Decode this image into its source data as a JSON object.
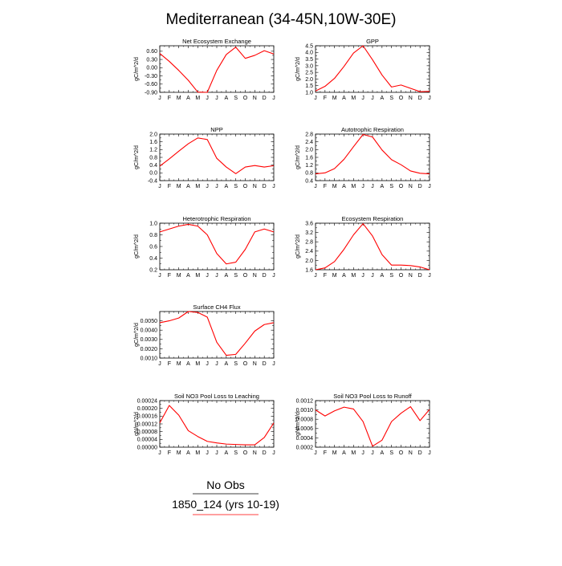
{
  "page_title": "Mediterranean (34-45N,10W-30E)",
  "legend": {
    "obs_label": "No Obs",
    "obs_color": "#000000",
    "case_label": "1850_124 (yrs 10-19)",
    "case_color": "#ff0000"
  },
  "line_color": "#ff0000",
  "months": [
    "J",
    "F",
    "M",
    "A",
    "M",
    "J",
    "J",
    "A",
    "S",
    "O",
    "N",
    "D",
    "J"
  ],
  "chart_data": [
    {
      "type": "line",
      "title": "Net Ecosystem Exchange",
      "ylabel": "gC/m^2/d",
      "ylim": [
        -0.9,
        0.8
      ],
      "yticks": [
        -0.9,
        -0.6,
        -0.3,
        0.0,
        0.3,
        0.6
      ],
      "ytick_labels": [
        "-0.90",
        "-0.60",
        "-0.30",
        "0.00",
        "0.30",
        "0.60"
      ],
      "values": [
        0.52,
        0.23,
        -0.1,
        -0.46,
        -0.89,
        -0.9,
        -0.1,
        0.48,
        0.75,
        0.34,
        0.45,
        0.62,
        0.5
      ]
    },
    {
      "type": "line",
      "title": "GPP",
      "ylabel": "gC/m^2/d",
      "ylim": [
        1.0,
        4.5
      ],
      "yticks": [
        1.0,
        1.5,
        2.0,
        2.5,
        3.0,
        3.5,
        4.0,
        4.5
      ],
      "ytick_labels": [
        "1.0",
        "1.5",
        "2.0",
        "2.5",
        "3.0",
        "3.5",
        "4.0",
        "4.5"
      ],
      "values": [
        1.1,
        1.45,
        2.05,
        2.95,
        3.95,
        4.5,
        3.45,
        2.3,
        1.4,
        1.55,
        1.3,
        1.05,
        1.07
      ]
    },
    {
      "type": "line",
      "title": "NPP",
      "ylabel": "gC/m^2/d",
      "ylim": [
        -0.4,
        2.0
      ],
      "yticks": [
        -0.4,
        0.0,
        0.4,
        0.8,
        1.2,
        1.6,
        2.0
      ],
      "ytick_labels": [
        "-0.4",
        "0.0",
        "0.4",
        "0.8",
        "1.2",
        "1.6",
        "2.0"
      ],
      "values": [
        0.35,
        0.72,
        1.12,
        1.5,
        1.8,
        1.72,
        0.75,
        0.3,
        -0.04,
        0.3,
        0.38,
        0.3,
        0.37
      ]
    },
    {
      "type": "line",
      "title": "Autotrophic Respiration",
      "ylabel": "gC/m^2/d",
      "ylim": [
        0.4,
        2.8
      ],
      "yticks": [
        0.4,
        0.8,
        1.2,
        1.6,
        2.0,
        2.4,
        2.8
      ],
      "ytick_labels": [
        "0.4",
        "0.8",
        "1.2",
        "1.6",
        "2.0",
        "2.4",
        "2.8"
      ],
      "values": [
        0.75,
        0.8,
        1.02,
        1.5,
        2.15,
        2.78,
        2.65,
        1.98,
        1.48,
        1.22,
        0.9,
        0.78,
        0.75
      ]
    },
    {
      "type": "line",
      "title": "Heterotrophic Respiration",
      "ylabel": "gC/m^2/d",
      "ylim": [
        0.2,
        1.0
      ],
      "yticks": [
        0.2,
        0.4,
        0.6,
        0.8,
        1.0
      ],
      "ytick_labels": [
        "0.2",
        "0.4",
        "0.6",
        "0.8",
        "1.0"
      ],
      "values": [
        0.85,
        0.9,
        0.95,
        0.98,
        0.95,
        0.8,
        0.48,
        0.3,
        0.33,
        0.55,
        0.85,
        0.9,
        0.85
      ]
    },
    {
      "type": "line",
      "title": "Ecosystem Respiration",
      "ylabel": "gC/m^2/d",
      "ylim": [
        1.6,
        3.6
      ],
      "yticks": [
        1.6,
        2.0,
        2.4,
        2.8,
        3.2,
        3.6
      ],
      "ytick_labels": [
        "1.6",
        "2.0",
        "2.4",
        "2.8",
        "3.2",
        "3.6"
      ],
      "values": [
        1.6,
        1.68,
        1.95,
        2.48,
        3.1,
        3.58,
        3.05,
        2.25,
        1.8,
        1.8,
        1.78,
        1.72,
        1.6
      ]
    },
    {
      "type": "line",
      "title": "Surface CH4 Flux",
      "ylabel": "gC/m^2/d",
      "ylim": [
        0.001,
        0.006
      ],
      "yticks": [
        0.001,
        0.002,
        0.003,
        0.004,
        0.005
      ],
      "ytick_labels": [
        "0.0010",
        "0.0020",
        "0.0030",
        "0.0040",
        "0.0050"
      ],
      "values": [
        0.0048,
        0.005,
        0.0053,
        0.006,
        0.0059,
        0.0054,
        0.0027,
        0.0013,
        0.0014,
        0.0026,
        0.0039,
        0.0046,
        0.0048
      ]
    },
    {
      "type": "line",
      "title": "Soil NO3 Pool Loss to Leaching",
      "ylabel": "gN/m^2/d",
      "ylim": [
        0.0,
        0.00024
      ],
      "yticks": [
        0.0,
        4e-05,
        8e-05,
        0.00012,
        0.00016,
        0.0002,
        0.00024
      ],
      "ytick_labels": [
        "0.00000",
        "0.00004",
        "0.00008",
        "0.00012",
        "0.00016",
        "0.00020",
        "0.00024"
      ],
      "values": [
        0.000125,
        0.000215,
        0.000165,
        8.5e-05,
        5.5e-05,
        3e-05,
        2.2e-05,
        1.6e-05,
        1.4e-05,
        1.2e-05,
        1.2e-05,
        5e-05,
        0.000125
      ]
    },
    {
      "type": "line",
      "title": "Soil NO3 Pool Loss to Runoff",
      "ylabel": "gN/m^2/d",
      "ylim": [
        0.0002,
        0.0012
      ],
      "yticks": [
        0.0002,
        0.0004,
        0.0006,
        0.0008,
        0.001,
        0.0012
      ],
      "ytick_labels": [
        "0.0002",
        "0.0004",
        "0.0006",
        "0.0008",
        "0.0010",
        "0.0012"
      ],
      "values": [
        0.001,
        0.00087,
        0.00098,
        0.00106,
        0.00102,
        0.00075,
        0.00022,
        0.00035,
        0.00075,
        0.00093,
        0.00107,
        0.00077,
        0.00101
      ]
    }
  ]
}
